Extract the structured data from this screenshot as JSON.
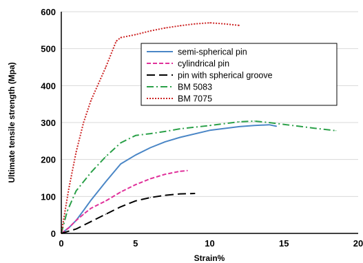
{
  "chart_data": {
    "type": "line",
    "xlabel": "Strain%",
    "ylabel": "Ultimate tensile strength (Mpa)",
    "xlim": [
      0,
      20
    ],
    "ylim": [
      0,
      600
    ],
    "x_ticks": [
      "0",
      "5",
      "10",
      "15",
      "20"
    ],
    "y_ticks": [
      "0",
      "100",
      "200",
      "300",
      "400",
      "500",
      "600"
    ],
    "grid": "horizontal",
    "legend_position": "top-right",
    "series": [
      {
        "name": "semi-spherical pin",
        "color": "#4a86c6",
        "style": "solid",
        "points": [
          [
            0,
            0
          ],
          [
            0.5,
            15
          ],
          [
            1,
            35
          ],
          [
            1.5,
            62
          ],
          [
            2,
            90
          ],
          [
            3,
            140
          ],
          [
            4,
            188
          ],
          [
            5,
            212
          ],
          [
            6,
            232
          ],
          [
            7,
            248
          ],
          [
            8,
            260
          ],
          [
            10,
            279
          ],
          [
            12,
            289
          ],
          [
            13,
            292
          ],
          [
            14,
            294
          ],
          [
            14.5,
            290
          ]
        ]
      },
      {
        "name": "cylindrical pin",
        "color": "#e0309a",
        "style": "dashed",
        "points": [
          [
            0,
            0
          ],
          [
            0.5,
            15
          ],
          [
            1,
            35
          ],
          [
            1.5,
            52
          ],
          [
            2,
            68
          ],
          [
            3,
            88
          ],
          [
            4,
            112
          ],
          [
            5,
            132
          ],
          [
            6,
            148
          ],
          [
            7,
            160
          ],
          [
            8,
            168
          ],
          [
            8.5,
            170
          ]
        ]
      },
      {
        "name": "pin with spherical groove",
        "color": "#000000",
        "style": "long-dash",
        "points": [
          [
            0,
            0
          ],
          [
            1,
            12
          ],
          [
            2,
            32
          ],
          [
            3,
            52
          ],
          [
            4,
            72
          ],
          [
            5,
            88
          ],
          [
            6,
            97
          ],
          [
            7,
            103
          ],
          [
            8,
            107
          ],
          [
            9,
            108
          ]
        ]
      },
      {
        "name": "BM 5083",
        "color": "#2aa048",
        "style": "dash-dot",
        "points": [
          [
            0,
            0
          ],
          [
            0.4,
            60
          ],
          [
            1,
            115
          ],
          [
            1.5,
            140
          ],
          [
            2,
            165
          ],
          [
            3,
            208
          ],
          [
            4,
            245
          ],
          [
            5,
            265
          ],
          [
            6,
            270
          ],
          [
            7,
            276
          ],
          [
            8,
            283
          ],
          [
            10,
            292
          ],
          [
            12,
            302
          ],
          [
            13,
            304
          ],
          [
            14,
            300
          ],
          [
            15,
            295
          ],
          [
            17,
            285
          ],
          [
            18.5,
            278
          ]
        ]
      },
      {
        "name": "BM 7075",
        "color": "#cc2222",
        "style": "dotted",
        "points": [
          [
            0,
            0
          ],
          [
            0.5,
            120
          ],
          [
            1,
            220
          ],
          [
            1.5,
            300
          ],
          [
            2,
            360
          ],
          [
            3,
            450
          ],
          [
            3.7,
            520
          ],
          [
            4,
            530
          ],
          [
            5,
            538
          ],
          [
            6,
            548
          ],
          [
            7,
            556
          ],
          [
            8,
            562
          ],
          [
            9,
            567
          ],
          [
            10,
            570
          ],
          [
            11,
            567
          ],
          [
            12,
            563
          ]
        ]
      }
    ]
  }
}
